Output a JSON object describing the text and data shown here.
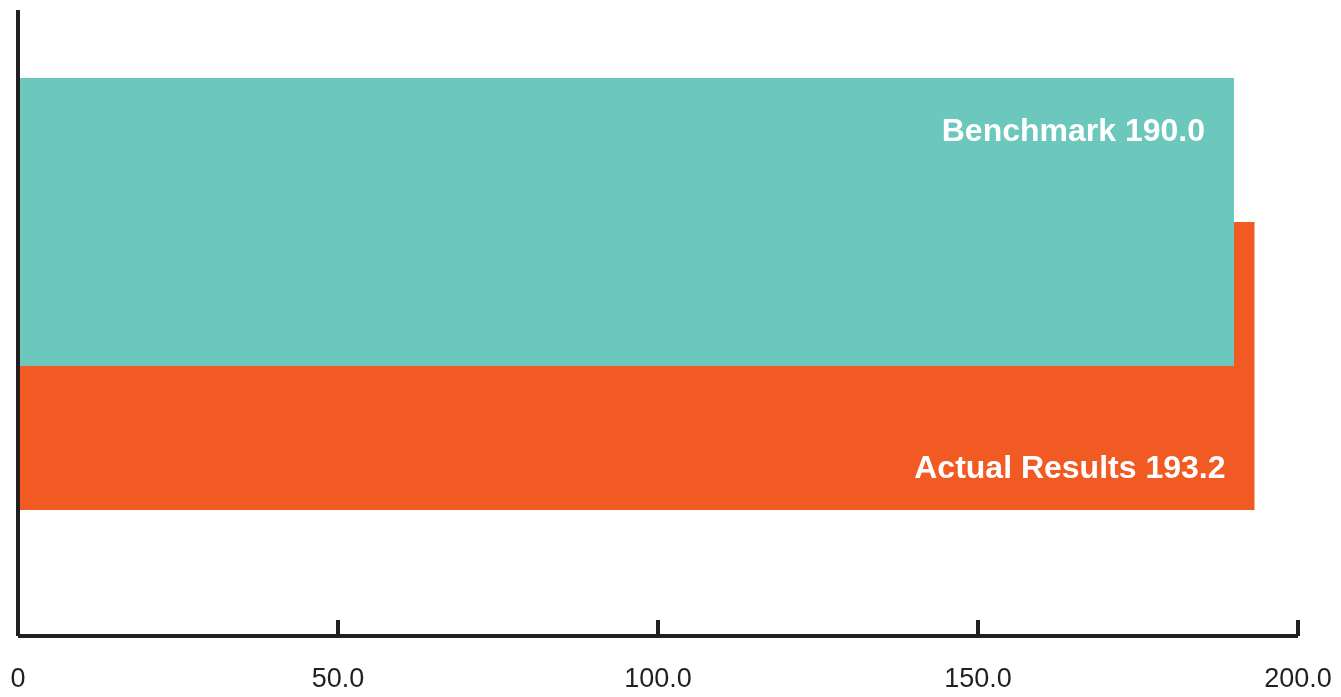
{
  "chart_data": {
    "type": "bar",
    "orientation": "horizontal",
    "categories": [
      null
    ],
    "series": [
      {
        "name": "Benchmark",
        "color": "#6cc8bd",
        "values": [
          190.0
        ],
        "value_labels": [
          "190.0"
        ]
      },
      {
        "name": "Actual Results",
        "color": "#f15a22",
        "values": [
          193.2
        ],
        "value_labels": [
          "193.2"
        ]
      }
    ],
    "xlim": [
      0,
      200
    ],
    "xticks": [
      0,
      {
        "value": 50,
        "label": "50.0"
      },
      {
        "value": 100,
        "label": "100.0"
      },
      {
        "value": 150,
        "label": "150.0"
      },
      {
        "value": 200,
        "label": "200.0"
      }
    ]
  }
}
